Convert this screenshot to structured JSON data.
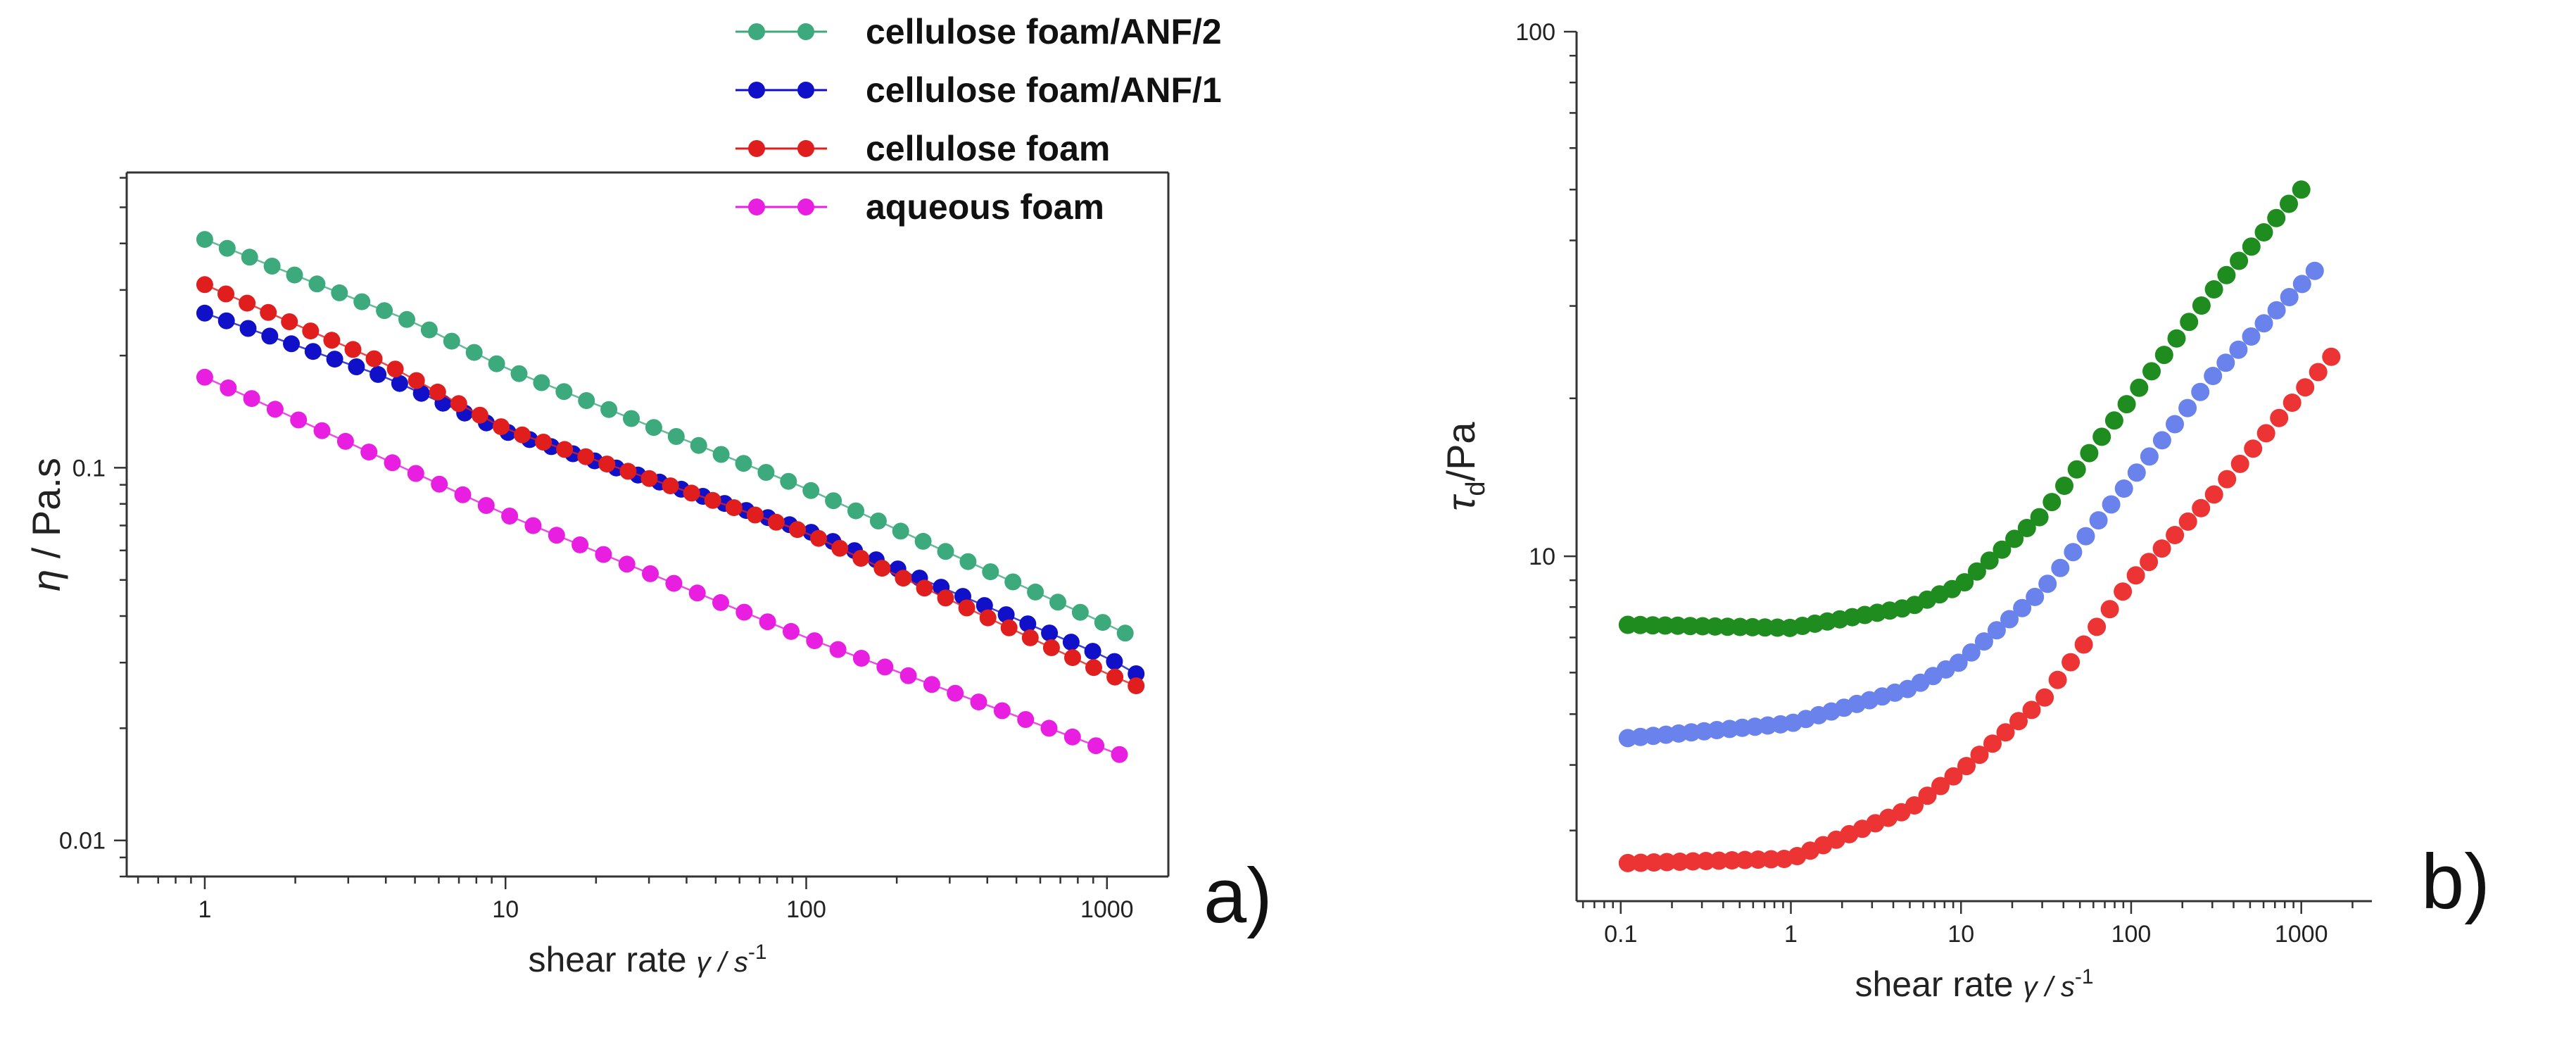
{
  "chart_data": [
    {
      "type": "scatter",
      "panel": "a)",
      "xlabel": "shear rate",
      "xunit": "γ / s",
      "xunit_exp": "-1",
      "ylabel_symbol": "η",
      "ylabel_unit": "/ Pa.s",
      "xscale": "log",
      "yscale": "log",
      "xlim": [
        0.55,
        1600
      ],
      "ylim": [
        0.008,
        0.62
      ],
      "xticks": [
        {
          "v": 1,
          "label": "1"
        },
        {
          "v": 10,
          "label": "10"
        },
        {
          "v": 100,
          "label": "100"
        },
        {
          "v": 1000,
          "label": "1000"
        }
      ],
      "yticks": [
        {
          "v": 0.01,
          "label": "0.01"
        },
        {
          "v": 0.1,
          "label": "0.1"
        }
      ],
      "legend_position": "top",
      "series": [
        {
          "name": "cellulose foam/ANF/2",
          "color": "#3daa7d",
          "npoints": 42,
          "x0": 1,
          "x1": 1150,
          "knots": [
            [
              1,
              0.41
            ],
            [
              5,
              0.245
            ],
            [
              10,
              0.185
            ],
            [
              100,
              0.088
            ],
            [
              1000,
              0.038
            ],
            [
              1150,
              0.036
            ]
          ]
        },
        {
          "name": "cellulose foam/ANF/1",
          "color": "#1010c8",
          "npoints": 44,
          "x0": 1,
          "x1": 1250,
          "knots": [
            [
              1,
              0.26
            ],
            [
              4,
              0.175
            ],
            [
              10,
              0.125
            ],
            [
              100,
              0.068
            ],
            [
              1000,
              0.031
            ],
            [
              1250,
              0.028
            ]
          ]
        },
        {
          "name": "cellulose foam",
          "color": "#e01e1e",
          "npoints": 45,
          "x0": 1,
          "x1": 1250,
          "knots": [
            [
              1,
              0.31
            ],
            [
              4,
              0.19
            ],
            [
              10,
              0.127
            ],
            [
              100,
              0.067
            ],
            [
              1000,
              0.028
            ],
            [
              1250,
              0.026
            ]
          ]
        },
        {
          "name": "aqueous foam",
          "color": "#e81ee0",
          "npoints": 40,
          "x0": 1,
          "x1": 1100,
          "knots": [
            [
              1,
              0.175
            ],
            [
              10,
              0.075
            ],
            [
              100,
              0.035
            ],
            [
              1000,
              0.0175
            ],
            [
              1100,
              0.017
            ]
          ]
        }
      ]
    },
    {
      "type": "scatter",
      "panel": "b)",
      "xlabel": "shear rate",
      "xunit": "γ / s",
      "xunit_exp": "-1",
      "ylabel_symbol": "τ",
      "ylabel_sub": "d",
      "ylabel_unit": "/Pa",
      "xscale": "log",
      "yscale": "log",
      "xlim": [
        0.055,
        2600
      ],
      "ylim": [
        2.2,
        100
      ],
      "xticks": [
        {
          "v": 0.1,
          "label": "0.1"
        },
        {
          "v": 1,
          "label": "1"
        },
        {
          "v": 10,
          "label": "10"
        },
        {
          "v": 100,
          "label": "100"
        },
        {
          "v": 1000,
          "label": "1000"
        }
      ],
      "yticks": [
        {
          "v": 10,
          "label": "10"
        },
        {
          "v": 100,
          "label": "100"
        }
      ],
      "series": [
        {
          "name": "cellulose foam/ANF/2",
          "color": "#1e8c1e",
          "npoints": 55,
          "x0": 0.11,
          "x1": 1000,
          "knots": [
            [
              0.11,
              7.4
            ],
            [
              1,
              7.3
            ],
            [
              5,
              8.0
            ],
            [
              10,
              8.8
            ],
            [
              30,
              12
            ],
            [
              100,
              20
            ],
            [
              300,
              32
            ],
            [
              1000,
              50
            ]
          ]
        },
        {
          "name": "cellulose foam/ANF/1",
          "color": "#6a82ec",
          "npoints": 55,
          "x0": 0.11,
          "x1": 1200,
          "knots": [
            [
              0.11,
              4.5
            ],
            [
              1,
              4.8
            ],
            [
              5,
              5.6
            ],
            [
              10,
              6.3
            ],
            [
              30,
              8.6
            ],
            [
              100,
              14
            ],
            [
              300,
              22
            ],
            [
              1200,
              35
            ]
          ]
        },
        {
          "name": "cellulose foam",
          "color": "#ec3434",
          "npoints": 55,
          "x0": 0.11,
          "x1": 1500,
          "knots": [
            [
              0.11,
              2.6
            ],
            [
              1,
              2.65
            ],
            [
              5,
              3.3
            ],
            [
              10,
              3.9
            ],
            [
              30,
              5.3
            ],
            [
              100,
              9
            ],
            [
              300,
              13
            ],
            [
              1500,
              24
            ]
          ]
        }
      ]
    }
  ]
}
